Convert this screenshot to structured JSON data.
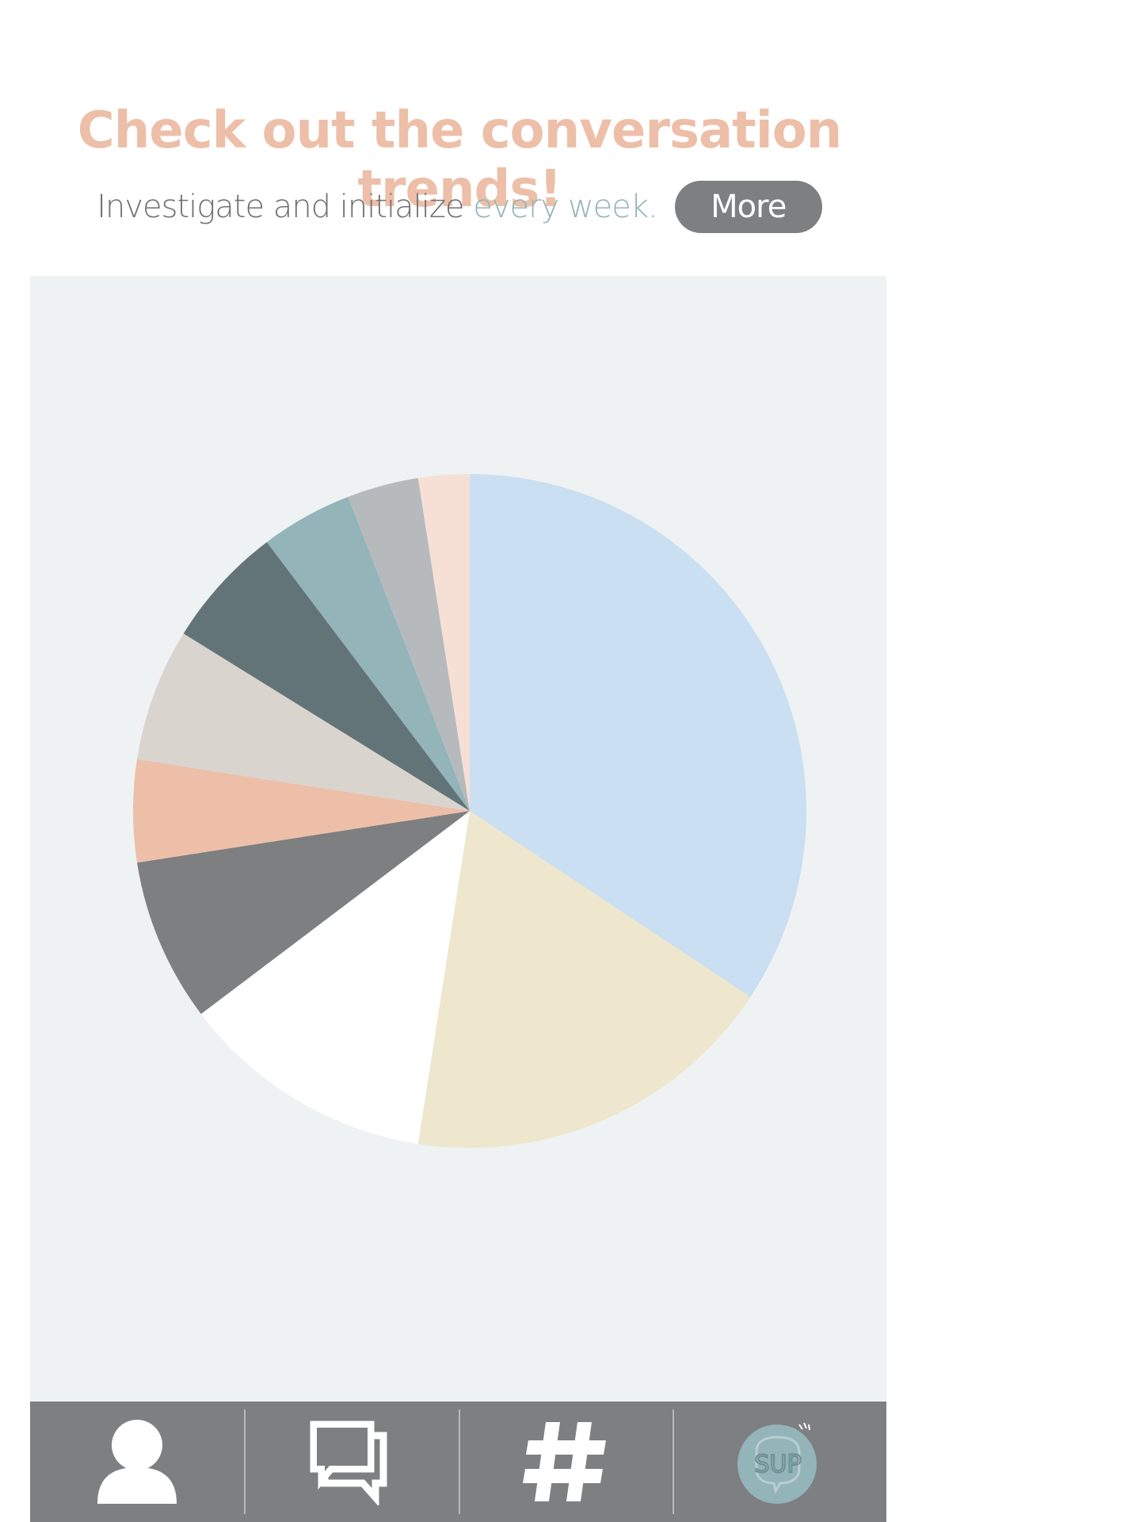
{
  "header": {
    "title": "Check out the conversation trends!",
    "subtitle_lead": "Investigate and initialize ",
    "subtitle_highlight": "every week.",
    "more_label": "More"
  },
  "colors": {
    "title": "#EDBFA8",
    "subtitle": "#6E6F72",
    "highlight": "#93B4B9",
    "button_bg": "#7E7F81",
    "panel_bg": "#EEF2F3",
    "tabbar_bg": "#7E7F81",
    "tab_icon": "#FFFFFF",
    "logo_fill": "#93B4B9"
  },
  "chart_data": {
    "type": "pie",
    "title": "",
    "start": "top, clockwise",
    "slices": [
      {
        "value": 35.0,
        "color": "#CADFF1"
      },
      {
        "value": 18.5,
        "color": "#EEE6CD"
      },
      {
        "value": 12.5,
        "color": "#FFFFFF"
      },
      {
        "value": 8.0,
        "color": "#7E7F81"
      },
      {
        "value": 5.0,
        "color": "#EDBFA8"
      },
      {
        "value": 6.5,
        "color": "#DAD4CF"
      },
      {
        "value": 6.0,
        "color": "#637478"
      },
      {
        "value": 4.5,
        "color": "#93B4B9"
      },
      {
        "value": 3.5,
        "color": "#B6BABC"
      },
      {
        "value": 2.5,
        "color": "#F6E0D5"
      }
    ]
  },
  "tabbar": {
    "tabs": [
      {
        "name": "tab-profile",
        "icon": "person-icon"
      },
      {
        "name": "tab-messages",
        "icon": "chat-bubbles-icon"
      },
      {
        "name": "tab-hashtags",
        "icon": "hashtag-icon"
      },
      {
        "name": "tab-sup",
        "icon": "sup-logo-icon",
        "logo_text": "SUP"
      }
    ]
  }
}
